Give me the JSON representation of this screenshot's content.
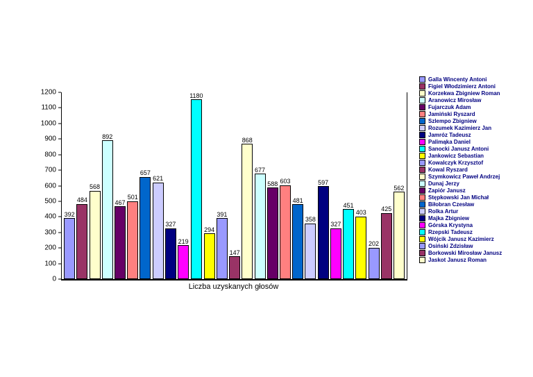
{
  "chart_data": {
    "type": "bar",
    "title": "",
    "xlabel": "Liczba uzyskanych głosów",
    "ylabel": "",
    "ylim": [
      0,
      1200
    ],
    "ytick_step": 100,
    "grid": false,
    "legend_position": "right",
    "legend_text_color": "#000080",
    "axis_color": "#000000",
    "points": [
      {
        "label": "Galla Wincenty Antoni",
        "value": 392,
        "color": "#9999FF"
      },
      {
        "label": "Figiel Włodzimierz Antoni",
        "value": 484,
        "color": "#993366"
      },
      {
        "label": "Korzekwa Zbigniew Roman",
        "value": 568,
        "color": "#FFFFCC"
      },
      {
        "label": "Aranowicz Mirosław",
        "value": 892,
        "color": "#CCFFFF"
      },
      {
        "label": "Fujarczuk Adam",
        "value": 467,
        "color": "#660066"
      },
      {
        "label": "Jamiński Ryszard",
        "value": 501,
        "color": "#FF8080"
      },
      {
        "label": "Szlempo Zbigniew",
        "value": 657,
        "color": "#0066CC"
      },
      {
        "label": "Rozumek Kazimierz Jan",
        "value": 621,
        "color": "#CCCCFF"
      },
      {
        "label": "Jamróz Tadeusz",
        "value": 327,
        "color": "#000080"
      },
      {
        "label": "Palimąka Daniel",
        "value": 219,
        "color": "#FF00FF"
      },
      {
        "label": "Sanocki Janusz Antoni",
        "value": 1180,
        "color": "#00FFFF"
      },
      {
        "label": "Jankowicz Sebastian",
        "value": 294,
        "color": "#FFFF00"
      },
      {
        "label": "Kowalczyk Krzysztof",
        "value": 391,
        "color": "#9999FF"
      },
      {
        "label": "Kowal Ryszard",
        "value": 147,
        "color": "#993366"
      },
      {
        "label": "Szymkowicz Paweł Andrzej",
        "value": 868,
        "color": "#FFFFCC"
      },
      {
        "label": "Dunaj Jerzy",
        "value": 677,
        "color": "#CCFFFF"
      },
      {
        "label": "Zapiór Janusz",
        "value": 588,
        "color": "#660066"
      },
      {
        "label": "Stępkowski Jan Michał",
        "value": 603,
        "color": "#FF8080"
      },
      {
        "label": "Biłobran Czesław",
        "value": 481,
        "color": "#0066CC"
      },
      {
        "label": "Rolka Artur",
        "value": 358,
        "color": "#CCCCFF"
      },
      {
        "label": "Majka Zbigniew",
        "value": 597,
        "color": "#000080"
      },
      {
        "label": "Górska Krystyna",
        "value": 327,
        "color": "#FF00FF"
      },
      {
        "label": "Rzepski Tadeusz",
        "value": 451,
        "color": "#00FFFF"
      },
      {
        "label": "Wójcik Janusz Kazimierz",
        "value": 403,
        "color": "#FFFF00"
      },
      {
        "label": "Osiński Zdzisław",
        "value": 202,
        "color": "#9999FF"
      },
      {
        "label": "Borkowski Mirosław Janusz",
        "value": 425,
        "color": "#993366"
      },
      {
        "label": "Jaskot Janusz Roman",
        "value": 562,
        "color": "#FFFFCC"
      }
    ]
  }
}
